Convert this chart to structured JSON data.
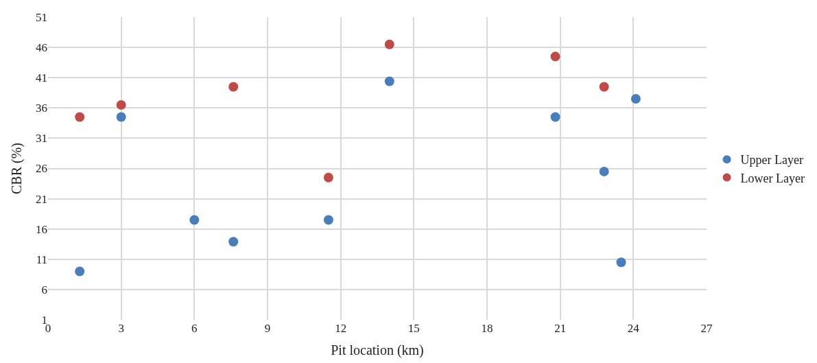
{
  "chart_data": {
    "type": "scatter",
    "xlabel": "Pit location (km)",
    "ylabel": "CBR (%)",
    "xlim": [
      0,
      27
    ],
    "xticks": [
      0,
      3,
      6,
      9,
      12,
      15,
      18,
      21,
      24,
      27
    ],
    "ylim": [
      1,
      51
    ],
    "yticks": [
      1,
      6,
      11,
      16,
      21,
      26,
      31,
      36,
      41,
      46,
      51
    ],
    "grid": true,
    "legend": "right",
    "marker": "circle",
    "series": [
      {
        "name": "Upper Layer",
        "color": "#4a7ebb",
        "x": [
          1.3,
          3.0,
          6.0,
          7.6,
          11.5,
          14.0,
          20.8,
          22.8,
          23.5,
          24.1
        ],
        "values": [
          9,
          34.5,
          17.5,
          13.9,
          17.5,
          40.4,
          34.5,
          25.5,
          10.5,
          37.5
        ]
      },
      {
        "name": "Lower Layer",
        "color": "#be4b48",
        "x": [
          1.3,
          3.0,
          7.6,
          11.5,
          14.0,
          20.8,
          22.8
        ],
        "values": [
          34.5,
          36.5,
          39.5,
          24.5,
          46.5,
          44.5,
          39.5
        ]
      }
    ]
  }
}
